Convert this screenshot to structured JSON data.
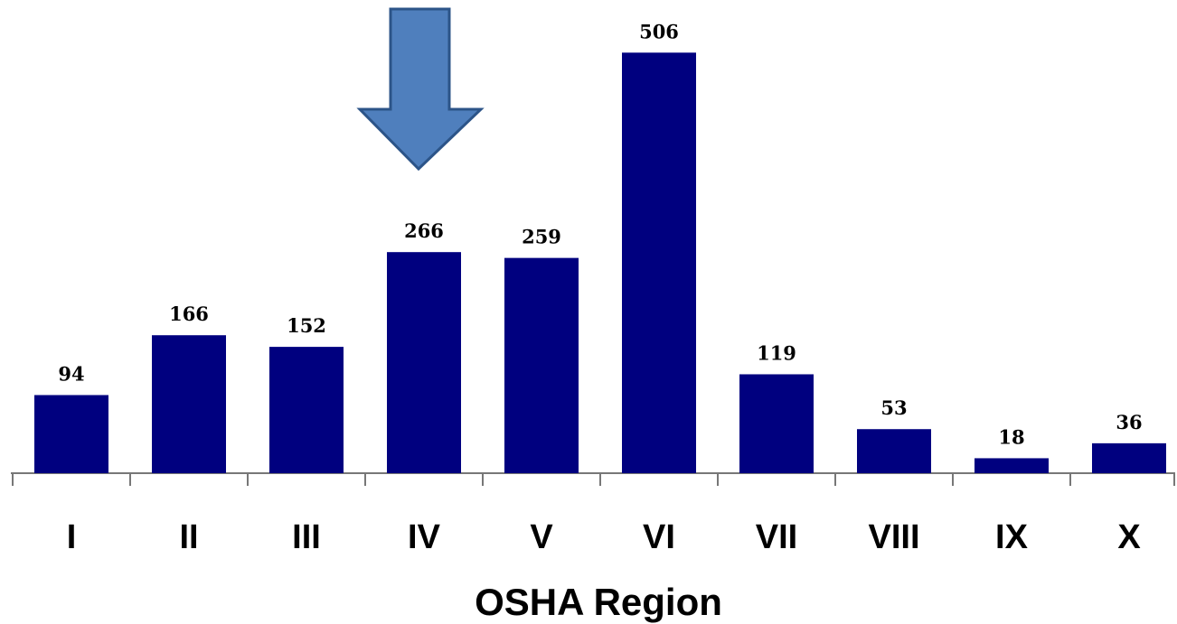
{
  "chart_data": {
    "type": "bar",
    "x_label": "OSHA Region",
    "categories": [
      "I",
      "II",
      "III",
      "IV",
      "V",
      "VI",
      "VII",
      "VIII",
      "IX",
      "X"
    ],
    "values": [
      94,
      166,
      152,
      266,
      259,
      506,
      119,
      53,
      18,
      36
    ],
    "color": "#00007f",
    "ylim": [
      0,
      540
    ]
  }
}
